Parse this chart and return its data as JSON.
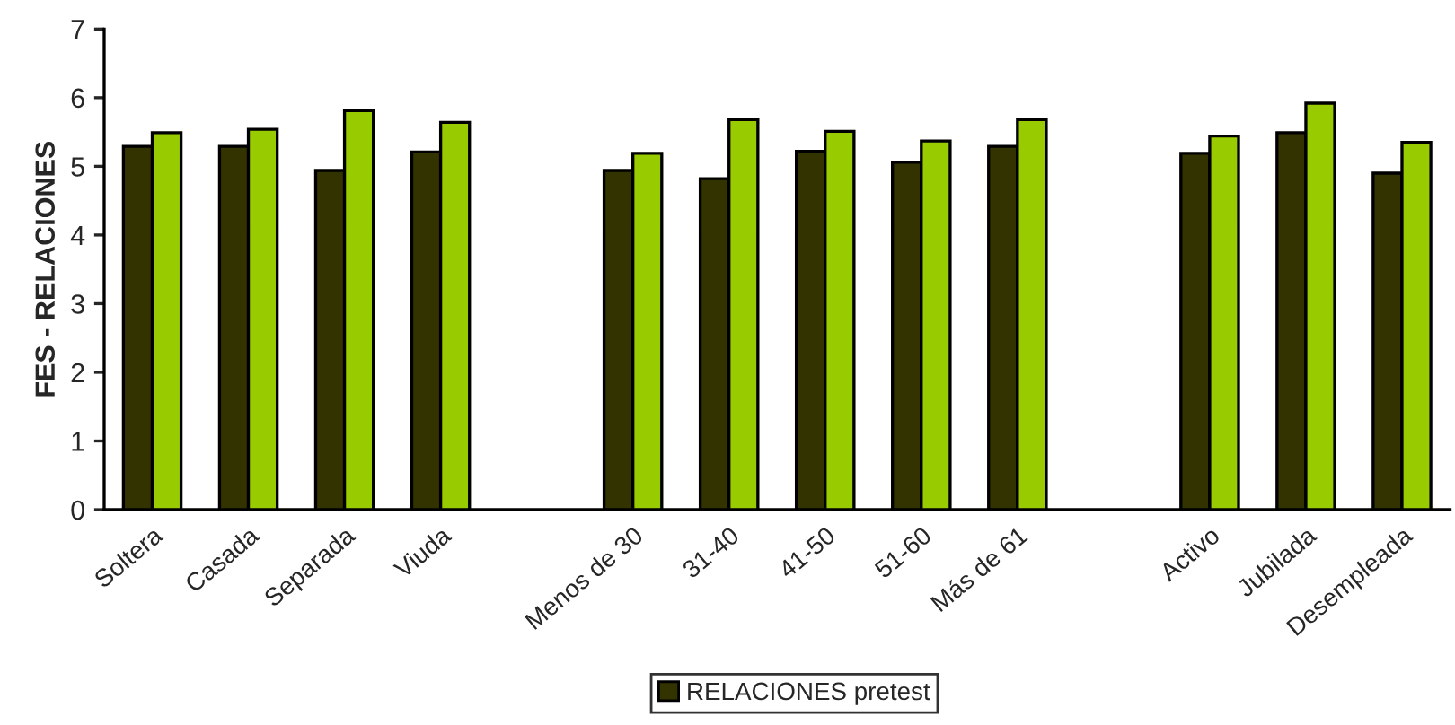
{
  "chart_data": {
    "type": "bar",
    "ylabel": "FES - RELACIONES",
    "categories": [
      "Soltera",
      "Casada",
      "Separada",
      "Viuda",
      null,
      "Menos de 30",
      "31-40",
      "41-50",
      "51-60",
      "Más de 61",
      null,
      "Activo",
      "Jubilada",
      "Desempleada"
    ],
    "series": [
      {
        "name": "RELACIONES pretest",
        "color": "#333300",
        "values": [
          5.29,
          5.29,
          4.94,
          5.21,
          null,
          4.94,
          4.82,
          5.22,
          5.06,
          5.29,
          null,
          5.19,
          5.49,
          4.9
        ]
      },
      {
        "color": "#99cc00",
        "values": [
          5.49,
          5.54,
          5.81,
          5.64,
          null,
          5.19,
          5.68,
          5.51,
          5.37,
          5.68,
          null,
          5.44,
          5.92,
          5.35
        ]
      }
    ],
    "ylim": [
      0,
      7
    ],
    "yticks": [
      0,
      1,
      2,
      3,
      4,
      5,
      6,
      7
    ],
    "grid": false,
    "legend": "bottom"
  }
}
